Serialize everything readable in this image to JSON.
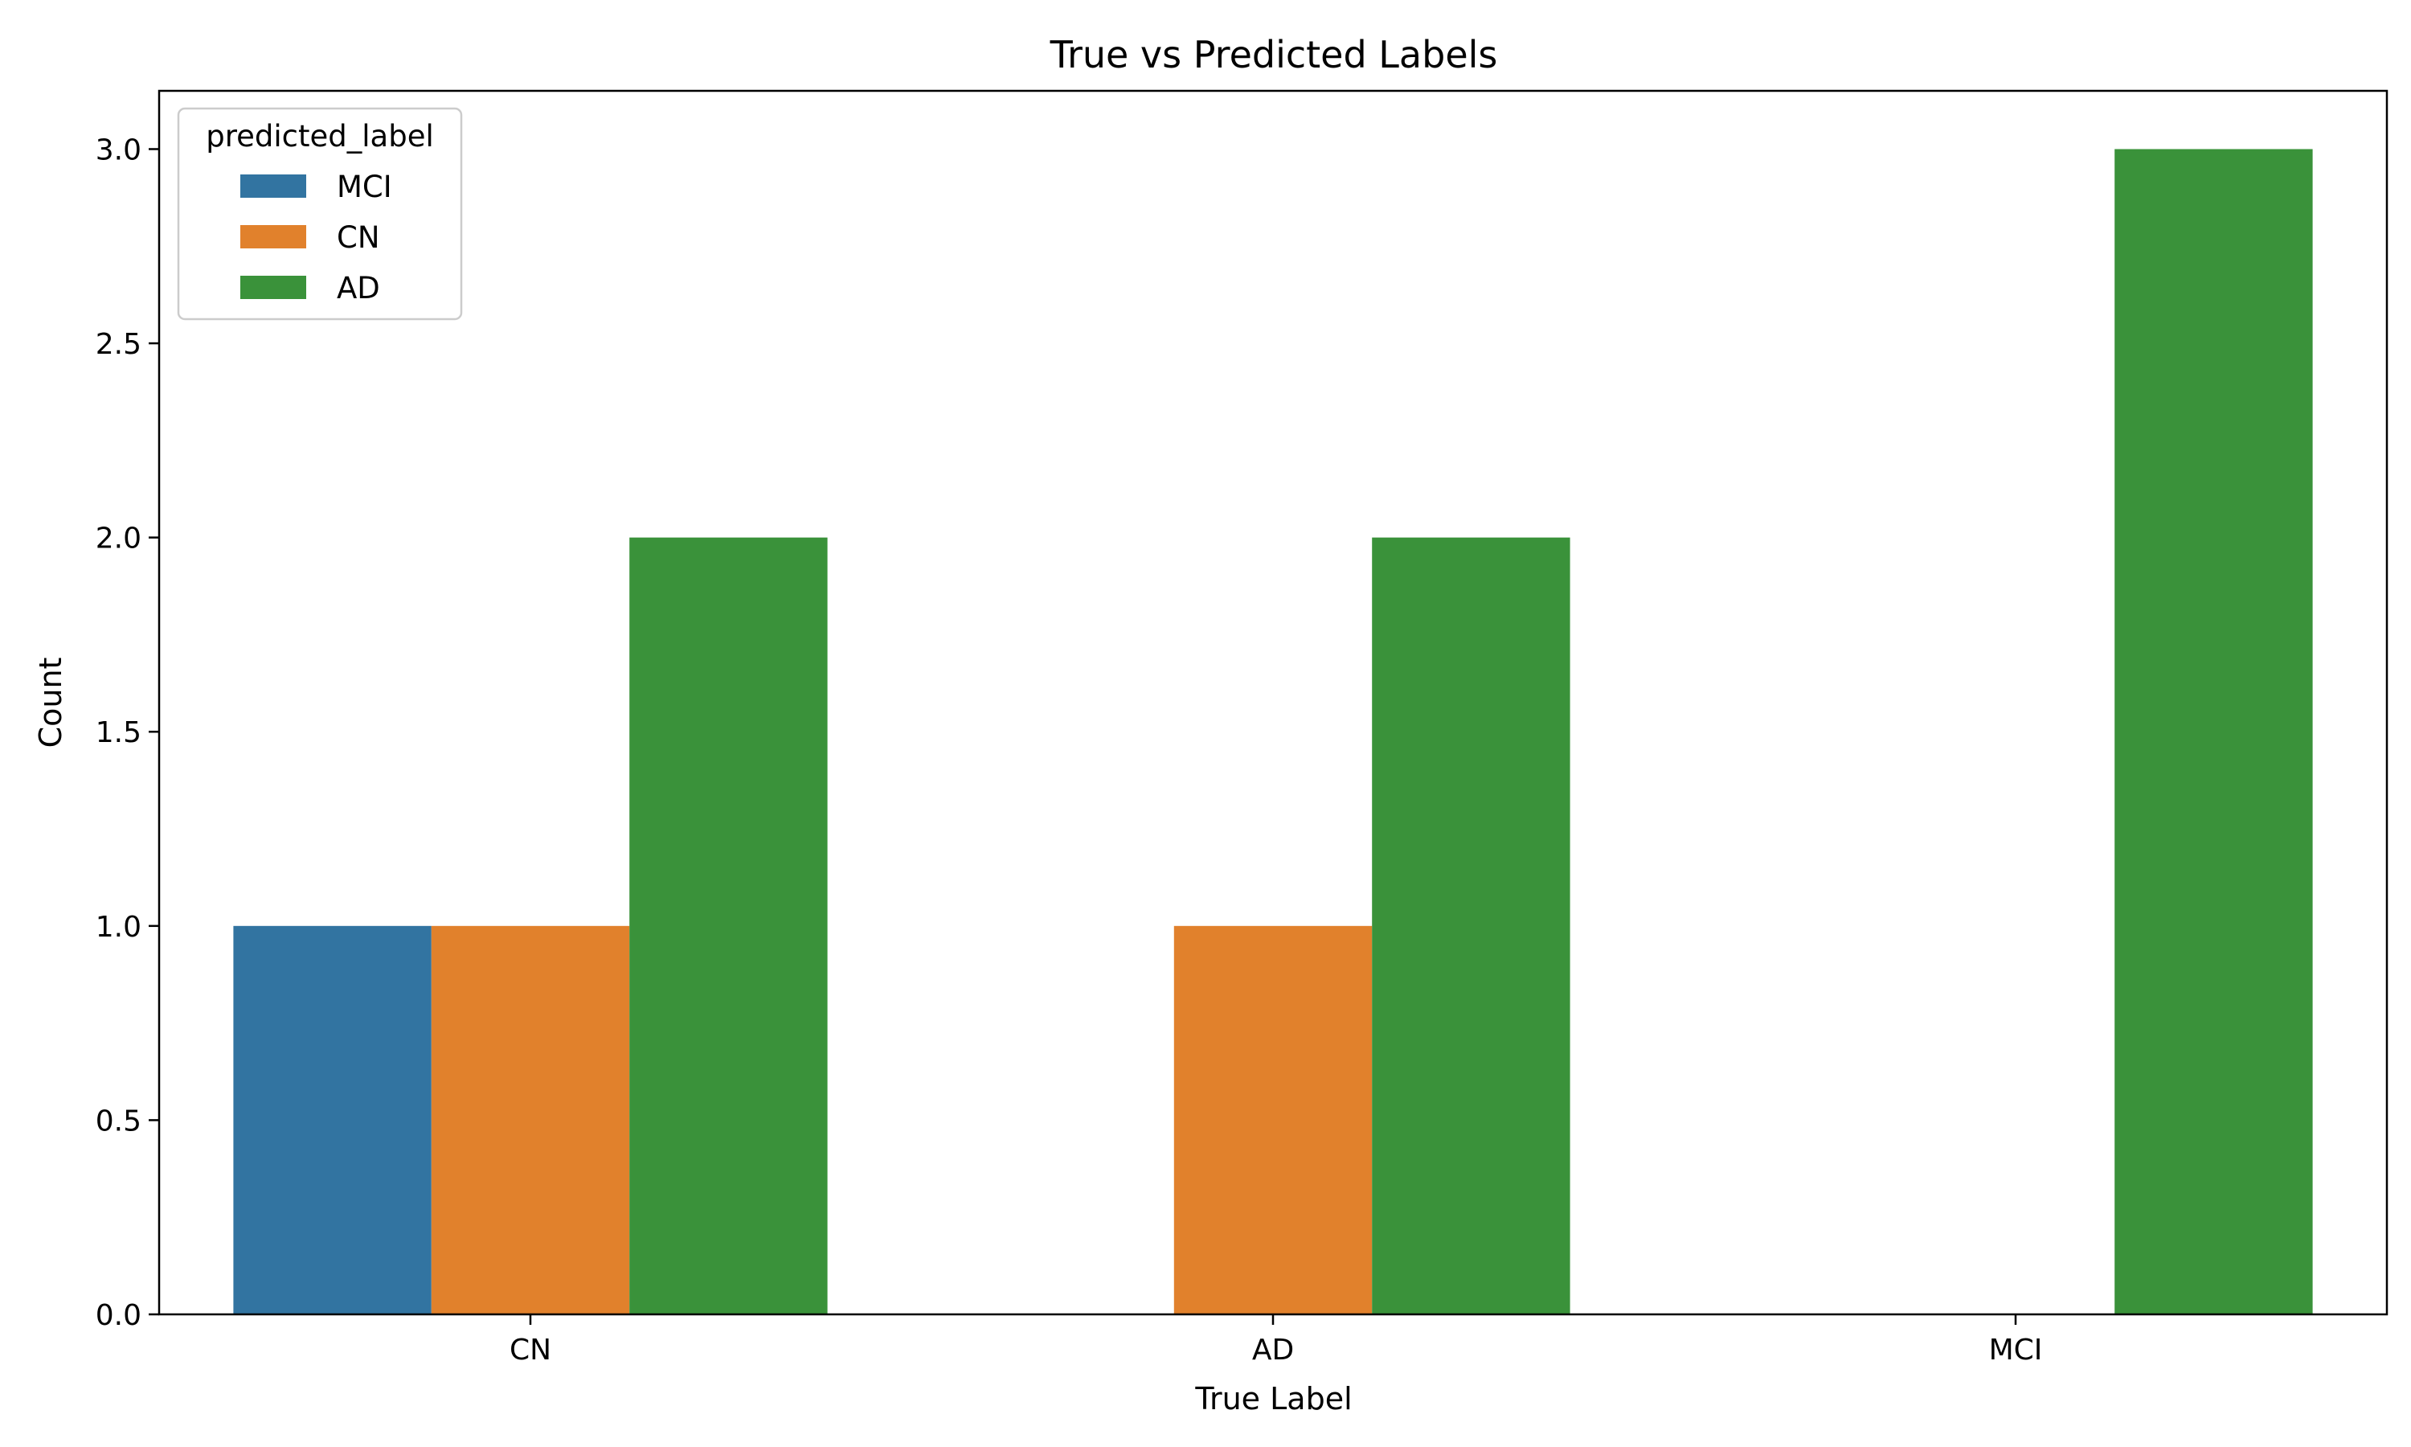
{
  "chart_data": {
    "type": "bar",
    "title": "True vs Predicted Labels",
    "xlabel": "True Label",
    "ylabel": "Count",
    "categories": [
      "CN",
      "AD",
      "MCI"
    ],
    "series": [
      {
        "name": "MCI",
        "color": "#3274a1",
        "values": [
          1,
          0,
          0
        ]
      },
      {
        "name": "CN",
        "color": "#e1812c",
        "values": [
          1,
          1,
          0
        ]
      },
      {
        "name": "AD",
        "color": "#3a923a",
        "values": [
          2,
          2,
          3
        ]
      }
    ],
    "ylim": [
      0,
      3.15
    ],
    "yticks": [
      "0.0",
      "0.5",
      "1.0",
      "1.5",
      "2.0",
      "2.5",
      "3.0"
    ],
    "legend": {
      "title": "predicted_label",
      "placement": "top-left"
    },
    "grid": false
  }
}
